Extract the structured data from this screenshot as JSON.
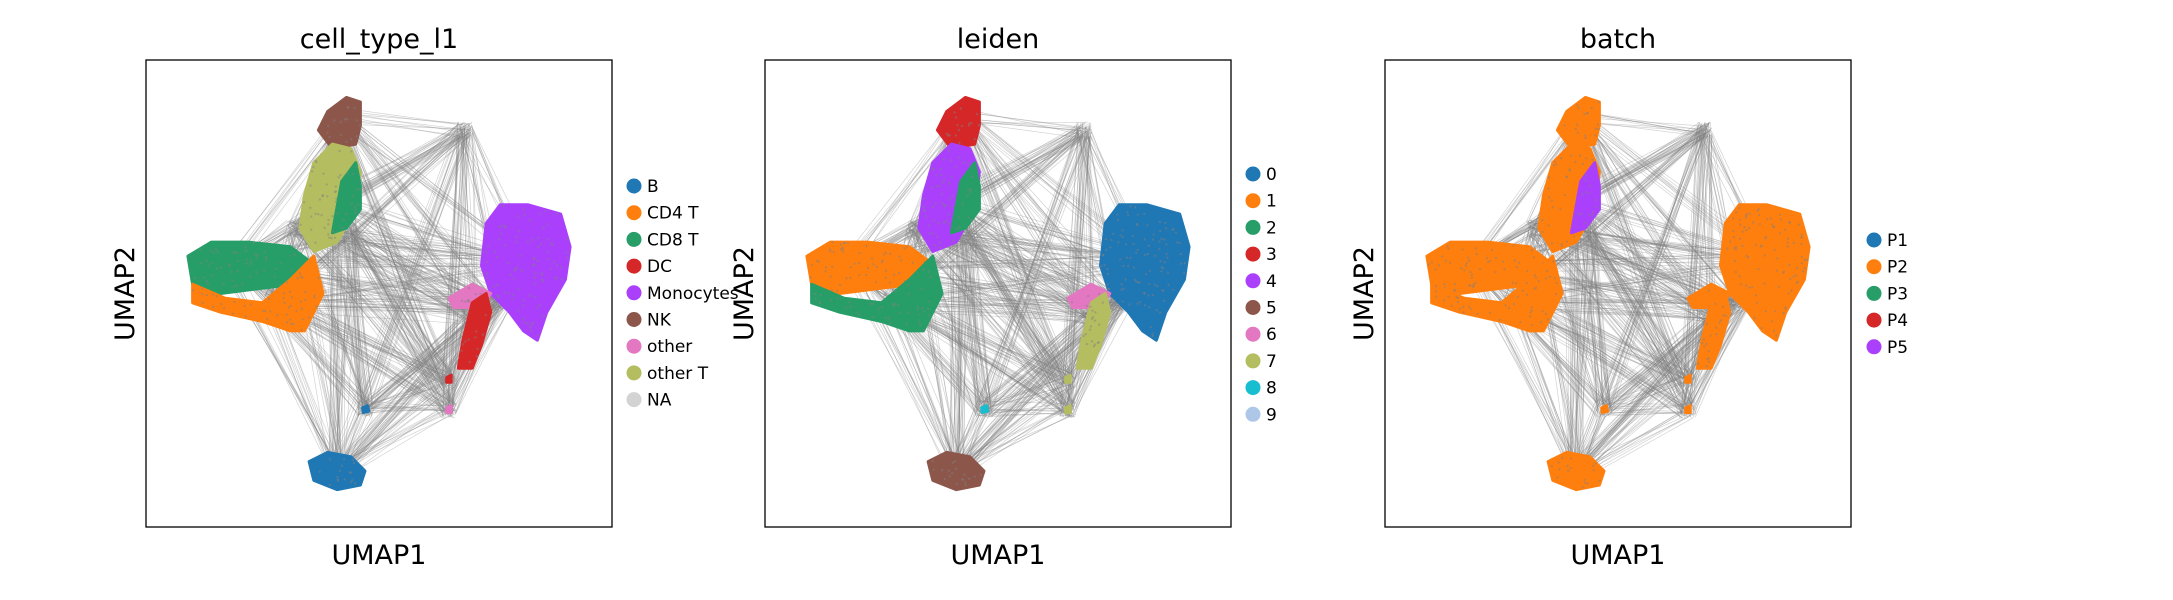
{
  "chart_data": [
    {
      "type": "scatter",
      "title": "cell_type_l1",
      "xlabel": "UMAP1",
      "ylabel": "UMAP2",
      "grid": false,
      "ticks": "none",
      "overlay": "PAGA connectivity graph drawn in grey lines over the UMAP embedding",
      "legend": {
        "placement": "right-outside",
        "items": [
          {
            "label": "B",
            "color": "#1f77b4"
          },
          {
            "label": "CD4 T",
            "color": "#ff7f0e"
          },
          {
            "label": "CD8 T",
            "color": "#279e68"
          },
          {
            "label": "DC",
            "color": "#d62728"
          },
          {
            "label": "Monocytes",
            "color": "#aa40fc"
          },
          {
            "label": "NK",
            "color": "#8c564b"
          },
          {
            "label": "other",
            "color": "#e377c2"
          },
          {
            "label": "other T",
            "color": "#b5bd61"
          },
          {
            "label": "NA",
            "color": "#d3d3d3"
          }
        ]
      },
      "color_assignment": {
        "top": "NK",
        "upper": "other T",
        "upper-rim": "CD8 T",
        "left": "CD8 T",
        "left-lower": "CD4 T",
        "right": "Monocytes",
        "right-tail-left": "other",
        "right-tail": "DC",
        "small-mid": "DC",
        "small-low": "other",
        "small-center": "B",
        "bottom": "B"
      }
    },
    {
      "type": "scatter",
      "title": "leiden",
      "xlabel": "UMAP1",
      "ylabel": "UMAP2",
      "grid": false,
      "ticks": "none",
      "overlay": "PAGA connectivity graph drawn in grey lines over the UMAP embedding",
      "legend": {
        "placement": "right-outside",
        "items": [
          {
            "label": "0",
            "color": "#1f77b4"
          },
          {
            "label": "1",
            "color": "#ff7f0e"
          },
          {
            "label": "2",
            "color": "#279e68"
          },
          {
            "label": "3",
            "color": "#d62728"
          },
          {
            "label": "4",
            "color": "#aa40fc"
          },
          {
            "label": "5",
            "color": "#8c564b"
          },
          {
            "label": "6",
            "color": "#e377c2"
          },
          {
            "label": "7",
            "color": "#b5bd61"
          },
          {
            "label": "8",
            "color": "#17becf"
          },
          {
            "label": "9",
            "color": "#aec7e8"
          }
        ]
      },
      "color_assignment": {
        "top": "3",
        "upper": "4",
        "upper-rim": "2",
        "left": "1",
        "left-lower": "2",
        "right": "0",
        "right-tail-left": "6",
        "right-tail": "7",
        "small-mid": "7",
        "small-low": "7",
        "small-center": "8",
        "bottom": "5"
      }
    },
    {
      "type": "scatter",
      "title": "batch",
      "xlabel": "UMAP1",
      "ylabel": "UMAP2",
      "grid": false,
      "ticks": "none",
      "overlay": "PAGA connectivity graph drawn in grey lines over the UMAP embedding",
      "legend": {
        "placement": "right-outside",
        "items": [
          {
            "label": "P1",
            "color": "#1f77b4"
          },
          {
            "label": "P2",
            "color": "#ff7f0e"
          },
          {
            "label": "P3",
            "color": "#279e68"
          },
          {
            "label": "P4",
            "color": "#d62728"
          },
          {
            "label": "P5",
            "color": "#aa40fc"
          }
        ]
      },
      "color_assignment": {
        "top": "P2",
        "upper": "P2",
        "upper-rim": "P5",
        "left": "P2",
        "left-lower": "P2",
        "right": "P2",
        "right-tail-left": "P2",
        "right-tail": "P2",
        "small-mid": "P2",
        "small-low": "P2",
        "small-center": "P2",
        "bottom": "P2"
      }
    }
  ],
  "colors": {
    "edge": "#808080",
    "axes": "#000000",
    "background": "#ffffff"
  }
}
